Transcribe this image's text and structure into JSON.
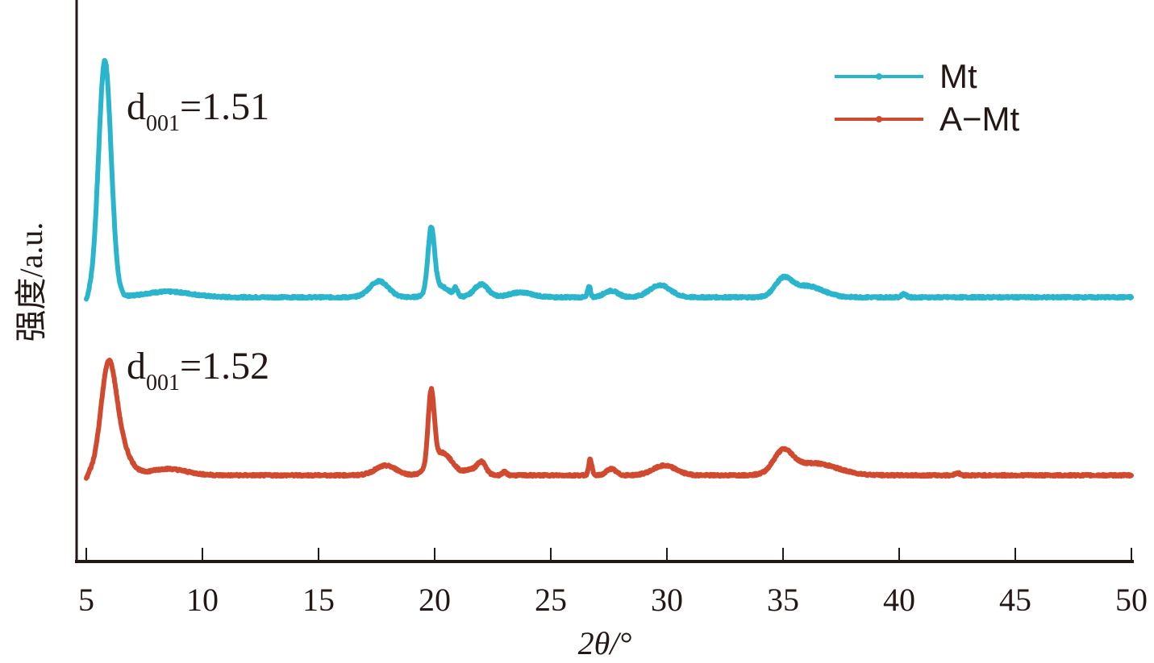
{
  "chart_data": {
    "type": "line",
    "title": "",
    "xlabel": "2θ/°",
    "ylabel": "强度/a.u.",
    "xlim": [
      4.5,
      50
    ],
    "ylim": [
      0,
      640
    ],
    "xticks": [
      5,
      10,
      15,
      20,
      25,
      30,
      35,
      40,
      45,
      50
    ],
    "grid": false,
    "legend_position": "top-right",
    "legend": [
      "Mt",
      "A−Mt"
    ],
    "annotations": [
      {
        "main": "d",
        "sub": "001",
        "rest": "=1.51",
        "series": "Mt"
      },
      {
        "main": "d",
        "sub": "001",
        "rest": "=1.52",
        "series": "A−Mt"
      }
    ],
    "series": [
      {
        "name": "Mt",
        "color": "#2bb5cc",
        "x_range": [
          5,
          50
        ],
        "baseline": 328,
        "peaks": [
          {
            "x": 5.8,
            "h": 294,
            "w": 0.27
          },
          {
            "x": 8.5,
            "h": 7,
            "w": 1.0
          },
          {
            "x": 17.6,
            "h": 20,
            "w": 0.4
          },
          {
            "x": 19.85,
            "h": 78,
            "w": 0.14
          },
          {
            "x": 20.2,
            "h": 14,
            "w": 0.4
          },
          {
            "x": 20.9,
            "h": 9,
            "w": 0.08
          },
          {
            "x": 22.0,
            "h": 16,
            "w": 0.3
          },
          {
            "x": 23.7,
            "h": 6,
            "w": 0.5
          },
          {
            "x": 26.65,
            "h": 14,
            "w": 0.06
          },
          {
            "x": 27.6,
            "h": 8,
            "w": 0.3
          },
          {
            "x": 29.7,
            "h": 15,
            "w": 0.45
          },
          {
            "x": 35.0,
            "h": 20,
            "w": 0.35
          },
          {
            "x": 36.0,
            "h": 14,
            "w": 0.7
          },
          {
            "x": 40.2,
            "h": 4,
            "w": 0.1
          }
        ]
      },
      {
        "name": "A−Mt",
        "color": "#d04a30",
        "x_range": [
          5,
          50
        ],
        "baseline": 107,
        "peaks": [
          {
            "x": 5.95,
            "h": 130,
            "w": 0.33
          },
          {
            "x": 6.5,
            "h": 30,
            "w": 0.4
          },
          {
            "x": 8.5,
            "h": 8,
            "w": 0.8
          },
          {
            "x": 17.9,
            "h": 12,
            "w": 0.45
          },
          {
            "x": 19.85,
            "h": 90,
            "w": 0.13
          },
          {
            "x": 20.3,
            "h": 28,
            "w": 0.45
          },
          {
            "x": 21.5,
            "h": 6,
            "w": 0.2
          },
          {
            "x": 22.0,
            "h": 17,
            "w": 0.2
          },
          {
            "x": 23.0,
            "h": 4,
            "w": 0.1
          },
          {
            "x": 26.7,
            "h": 20,
            "w": 0.07
          },
          {
            "x": 27.6,
            "h": 8,
            "w": 0.2
          },
          {
            "x": 29.9,
            "h": 12,
            "w": 0.5
          },
          {
            "x": 35.0,
            "h": 26,
            "w": 0.4
          },
          {
            "x": 36.3,
            "h": 15,
            "w": 1.0
          },
          {
            "x": 42.5,
            "h": 3,
            "w": 0.1
          }
        ]
      }
    ]
  }
}
